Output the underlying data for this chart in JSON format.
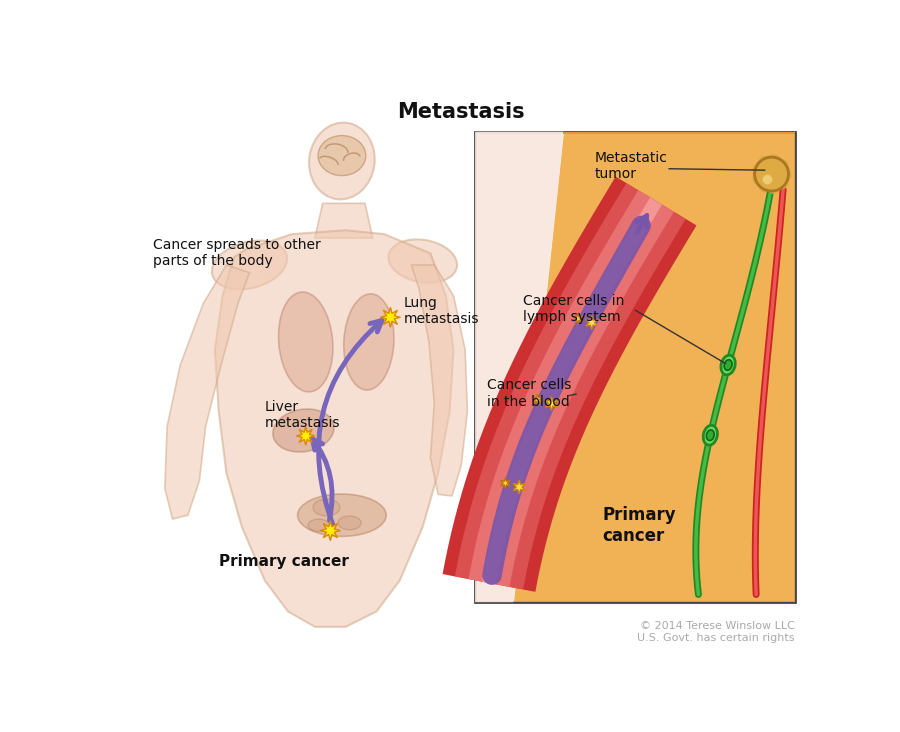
{
  "title": "Metastasis",
  "title_fontsize": 15,
  "title_fontweight": "bold",
  "background_color": "#ffffff",
  "copyright_text": "© 2014 Terese Winslow LLC\nU.S. Govt. has certain rights",
  "copyright_color": "#aaaaaa",
  "copyright_fontsize": 8,
  "label_primary_cancer": "Primary cancer",
  "label_lung": "Lung\nmetastasis",
  "label_liver": "Liver\nmetastasis",
  "label_spreads": "Cancer spreads to other\nparts of the body",
  "inset_label_metastatic": "Metastatic\ntumor",
  "inset_label_lymph": "Cancer cells in\nlymph system",
  "inset_label_blood": "Cancer cells\nin the blood",
  "inset_label_primary": "Primary\ncancer",
  "star_color": "#ffee00",
  "star_edge_color": "#dd8800",
  "arrow_color": "#7766bb",
  "inset_bg_color": "#faf5f0",
  "tissue_color": "#f0b060",
  "blood_outer": "#dd4444",
  "blood_inner": "#f08080",
  "lymph_color": "#22aa22",
  "red_vessel_color": "#cc2222",
  "purple_color": "#7755aa"
}
